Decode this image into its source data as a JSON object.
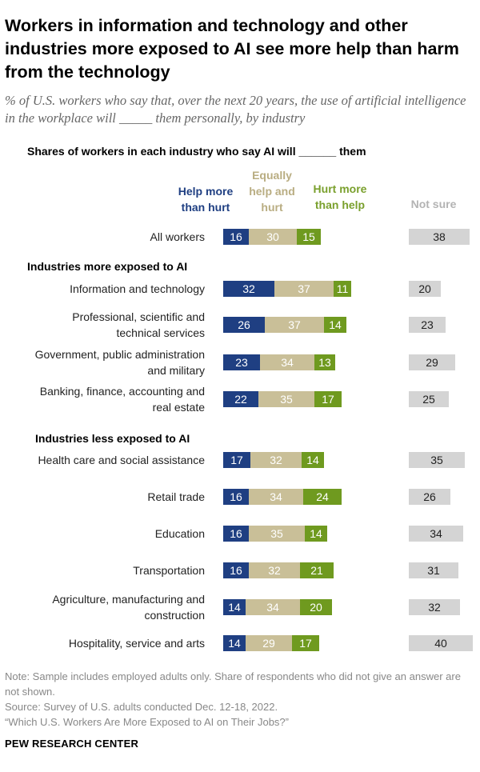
{
  "header": {
    "title": "Workers in information and technology and other industries more exposed to AI see more help than harm from the technology",
    "subtitle": "% of U.S. workers who say that, over the next 20 years, the use of artificial intelligence in the workplace will _____ them personally, by industry"
  },
  "colors": {
    "help_more": "#1f3f82",
    "equally": "#c9bf98",
    "hurt_more": "#6f9a1f",
    "not_sure": "#d4d4d4",
    "label_help": "#1f3f82",
    "label_equal": "#b9ad82",
    "label_hurt": "#7aa02d",
    "label_notsure": "#b3b3b3"
  },
  "chart_data": {
    "type": "bar",
    "stacked": true,
    "subtitle_label": "Shares of workers in each industry who say AI will ______ them",
    "legend": {
      "help": "Help more than hurt",
      "equal": "Equally help and hurt",
      "hurt": "Hurt more than help",
      "notsure": "Not sure"
    },
    "section_headers": [
      "Industries more exposed to AI",
      "Industries less exposed to AI"
    ],
    "categories": [
      "All workers",
      "Information and technology",
      "Professional, scientific and technical services",
      "Government, public administration and military",
      "Banking, finance, accounting and real estate",
      "Health care and social assistance",
      "Retail trade",
      "Education",
      "Transportation",
      "Agriculture, manufacturing and construction",
      "Hospitality, service and arts"
    ],
    "series": [
      {
        "name": "Help more than hurt",
        "values": [
          16,
          32,
          26,
          23,
          22,
          17,
          16,
          16,
          16,
          14,
          14
        ]
      },
      {
        "name": "Equally help and hurt",
        "values": [
          30,
          37,
          37,
          34,
          35,
          32,
          34,
          35,
          32,
          34,
          29
        ]
      },
      {
        "name": "Hurt more than help",
        "values": [
          15,
          11,
          14,
          13,
          17,
          14,
          24,
          14,
          21,
          20,
          17
        ]
      },
      {
        "name": "Not sure",
        "values": [
          38,
          20,
          23,
          29,
          25,
          35,
          26,
          34,
          31,
          32,
          40
        ]
      }
    ]
  },
  "notes": {
    "note": "Note: Sample includes employed adults only. Share of respondents who did not give an answer are not shown.",
    "source": "Source: Survey of U.S. adults conducted Dec. 12-18, 2022.",
    "report": "“Which U.S. Workers Are More Exposed to AI on Their Jobs?”"
  },
  "brand": "PEW RESEARCH CENTER"
}
